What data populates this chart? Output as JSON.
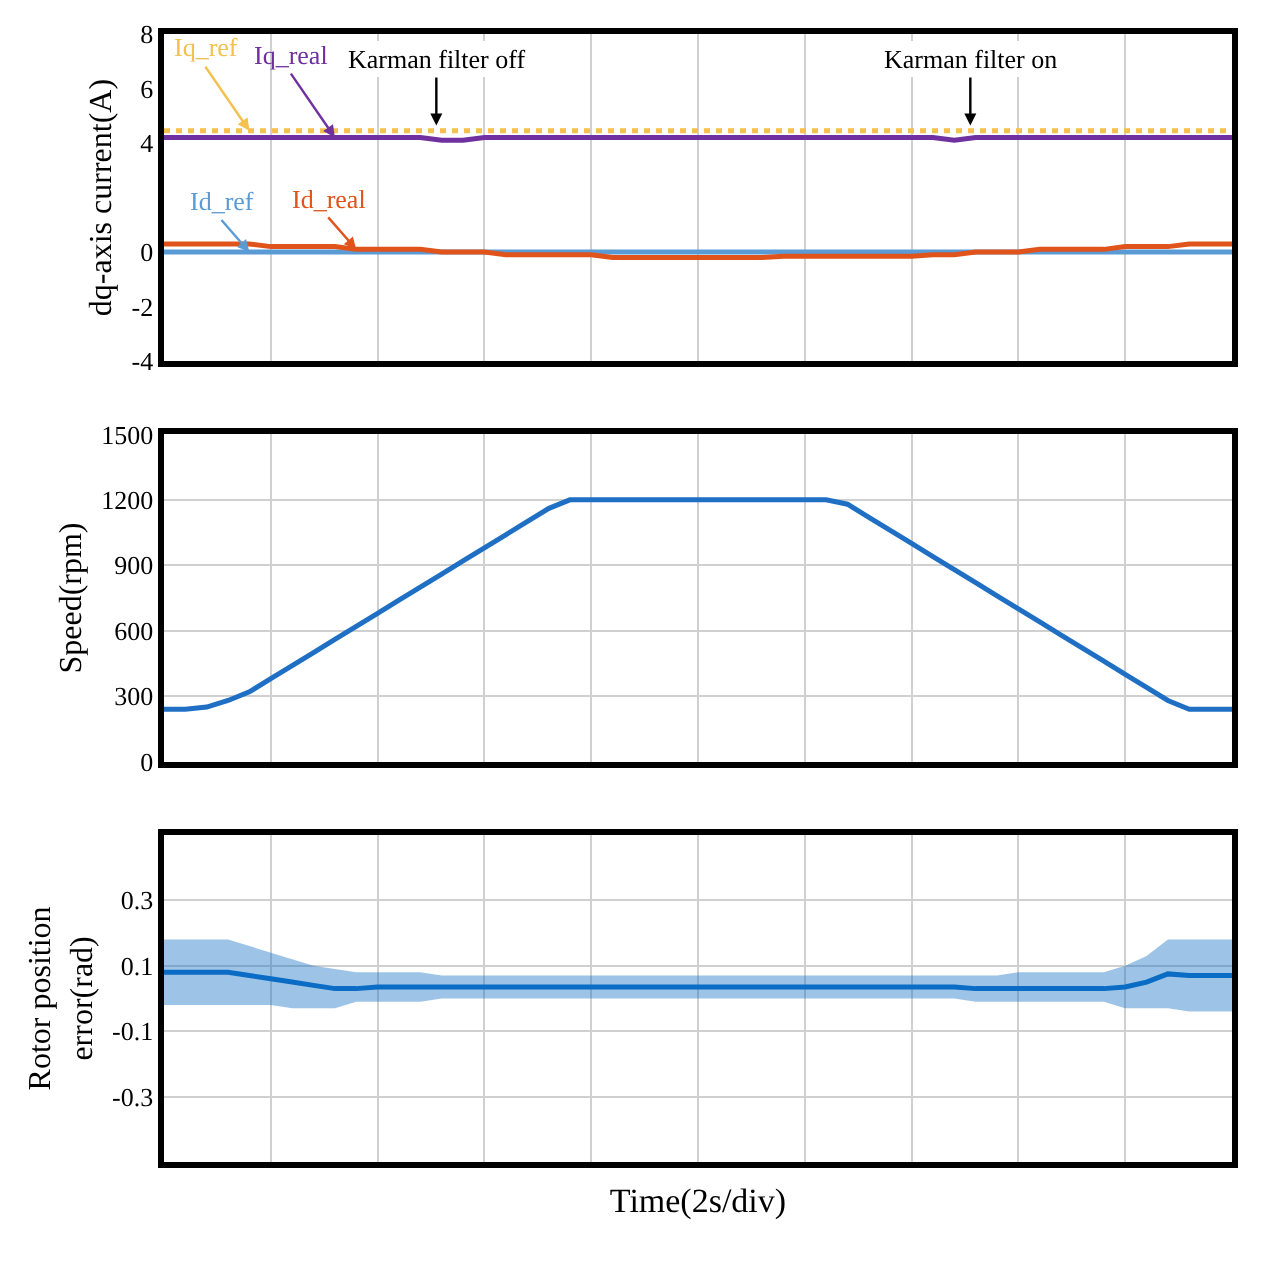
{
  "chart_data": [
    {
      "type": "line",
      "ylabel": "dq-axis current(A)",
      "categories": [
        null,
        null,
        null,
        null,
        null,
        null,
        null,
        null,
        null,
        null,
        null,
        null,
        null,
        null,
        null,
        null,
        null,
        null,
        null,
        null,
        null,
        null,
        null,
        null,
        null,
        null,
        null,
        null,
        null,
        null,
        null,
        null,
        null,
        null,
        null,
        null,
        null,
        null,
        null,
        null,
        null,
        null,
        null,
        null,
        null,
        null,
        null,
        null,
        null,
        null,
        null
      ],
      "ylim": [
        -4,
        8
      ],
      "yticks": [
        8,
        6,
        4,
        0,
        -2,
        -4
      ],
      "tick_labels": "y",
      "grid": "x",
      "legend": "top left",
      "series": [
        {
          "name": "Iq_ref",
          "color": "#f2c14e",
          "line_style": "dotted",
          "values": [
            4.45,
            4.45,
            4.45,
            4.45,
            4.45,
            4.45,
            4.45,
            4.45,
            4.45,
            4.45,
            4.45,
            4.45,
            4.45,
            4.45,
            4.45,
            4.45,
            4.45,
            4.45,
            4.45,
            4.45,
            4.45,
            4.45,
            4.45,
            4.45,
            4.45,
            4.45,
            4.45,
            4.45,
            4.45,
            4.45,
            4.45,
            4.45,
            4.45,
            4.45,
            4.45,
            4.45,
            4.45,
            4.45,
            4.45,
            4.45,
            4.45,
            4.45,
            4.45,
            4.45,
            4.45,
            4.45,
            4.45,
            4.45,
            4.45,
            4.45,
            4.45
          ]
        },
        {
          "name": "Iq_real",
          "color": "#7030a0",
          "values": [
            4.2,
            4.2,
            4.2,
            4.2,
            4.2,
            4.2,
            4.2,
            4.2,
            4.2,
            4.2,
            4.2,
            4.2,
            4.2,
            4.1,
            4.1,
            4.2,
            4.2,
            4.2,
            4.2,
            4.2,
            4.2,
            4.2,
            4.2,
            4.2,
            4.2,
            4.2,
            4.2,
            4.2,
            4.2,
            4.2,
            4.2,
            4.2,
            4.2,
            4.2,
            4.2,
            4.2,
            4.2,
            4.1,
            4.2,
            4.2,
            4.2,
            4.2,
            4.2,
            4.2,
            4.2,
            4.2,
            4.2,
            4.2,
            4.2,
            4.2,
            4.2
          ]
        },
        {
          "name": "Id_ref",
          "color": "#5b9bd5",
          "values": [
            0,
            0,
            0,
            0,
            0,
            0,
            0,
            0,
            0,
            0,
            0,
            0,
            0,
            0,
            0,
            0,
            0,
            0,
            0,
            0,
            0,
            0,
            0,
            0,
            0,
            0,
            0,
            0,
            0,
            0,
            0,
            0,
            0,
            0,
            0,
            0,
            0,
            0,
            0,
            0,
            0,
            0,
            0,
            0,
            0,
            0,
            0,
            0,
            0,
            0,
            0
          ]
        },
        {
          "name": "Id_real",
          "color": "#e0541b",
          "values": [
            0.3,
            0.3,
            0.3,
            0.3,
            0.3,
            0.2,
            0.2,
            0.2,
            0.2,
            0.1,
            0.1,
            0.1,
            0.1,
            0,
            0,
            0,
            -0.1,
            -0.1,
            -0.1,
            -0.1,
            -0.1,
            -0.2,
            -0.2,
            -0.2,
            -0.2,
            -0.2,
            -0.2,
            -0.2,
            -0.2,
            -0.15,
            -0.15,
            -0.15,
            -0.15,
            -0.15,
            -0.15,
            -0.15,
            -0.1,
            -0.1,
            0,
            0,
            0,
            0.1,
            0.1,
            0.1,
            0.1,
            0.2,
            0.2,
            0.2,
            0.3,
            0.3,
            0.3
          ]
        }
      ],
      "annotations": [
        "Karman filter off",
        "Karman filter on"
      ]
    },
    {
      "type": "line",
      "ylabel": "Speed(rpm)",
      "categories": [
        null,
        null,
        null,
        null,
        null,
        null,
        null,
        null,
        null,
        null,
        null,
        null,
        null,
        null,
        null,
        null,
        null,
        null,
        null,
        null,
        null,
        null,
        null,
        null,
        null,
        null,
        null,
        null,
        null,
        null,
        null,
        null,
        null,
        null,
        null,
        null,
        null,
        null,
        null,
        null,
        null,
        null,
        null,
        null,
        null,
        null,
        null,
        null,
        null,
        null,
        null
      ],
      "ylim": [
        0,
        1500
      ],
      "yticks": [
        0,
        300,
        600,
        900,
        1200,
        1500
      ],
      "tick_labels": "y",
      "grid": true,
      "series": [
        {
          "color": "#1f6fc4",
          "values": [
            240,
            240,
            250,
            280,
            320,
            380,
            440,
            500,
            560,
            620,
            680,
            740,
            800,
            860,
            920,
            980,
            1040,
            1100,
            1160,
            1200,
            1200,
            1200,
            1200,
            1200,
            1200,
            1200,
            1200,
            1200,
            1200,
            1200,
            1200,
            1200,
            1180,
            1120,
            1060,
            1000,
            940,
            880,
            820,
            760,
            700,
            640,
            580,
            520,
            460,
            400,
            340,
            280,
            240,
            240,
            240
          ]
        }
      ]
    },
    {
      "type": "line",
      "ylabel": "Rotor position error(rad)",
      "xlabel": "Time(2s/div)",
      "categories": [
        null,
        null,
        null,
        null,
        null,
        null,
        null,
        null,
        null,
        null,
        null,
        null,
        null,
        null,
        null,
        null,
        null,
        null,
        null,
        null,
        null,
        null,
        null,
        null,
        null,
        null,
        null,
        null,
        null,
        null,
        null,
        null,
        null,
        null,
        null,
        null,
        null,
        null,
        null,
        null,
        null,
        null,
        null,
        null,
        null,
        null,
        null,
        null,
        null,
        null,
        null
      ],
      "ylim": [
        -0.5,
        0.5
      ],
      "yticks": [
        0.3,
        0.1,
        -0.1,
        -0.3
      ],
      "tick_labels": "y",
      "grid": true,
      "series": [
        {
          "color": "#0a6cc4",
          "values": [
            0.08,
            0.08,
            0.08,
            0.08,
            0.07,
            0.06,
            0.05,
            0.04,
            0.03,
            0.03,
            0.035,
            0.035,
            0.035,
            0.035,
            0.035,
            0.035,
            0.035,
            0.035,
            0.035,
            0.035,
            0.035,
            0.035,
            0.035,
            0.035,
            0.035,
            0.035,
            0.035,
            0.035,
            0.035,
            0.035,
            0.035,
            0.035,
            0.035,
            0.035,
            0.035,
            0.035,
            0.035,
            0.035,
            0.03,
            0.03,
            0.03,
            0.03,
            0.03,
            0.03,
            0.03,
            0.035,
            0.05,
            0.075,
            0.07,
            0.07,
            0.07
          ],
          "upper": [
            0.18,
            0.18,
            0.18,
            0.18,
            0.16,
            0.14,
            0.12,
            0.1,
            0.09,
            0.08,
            0.08,
            0.08,
            0.08,
            0.07,
            0.07,
            0.07,
            0.07,
            0.07,
            0.07,
            0.07,
            0.07,
            0.07,
            0.07,
            0.07,
            0.07,
            0.07,
            0.07,
            0.07,
            0.07,
            0.07,
            0.07,
            0.07,
            0.07,
            0.07,
            0.07,
            0.07,
            0.07,
            0.07,
            0.07,
            0.07,
            0.08,
            0.08,
            0.08,
            0.08,
            0.08,
            0.1,
            0.13,
            0.18,
            0.18,
            0.18,
            0.18
          ],
          "lower": [
            -0.02,
            -0.02,
            -0.02,
            -0.02,
            -0.02,
            -0.02,
            -0.03,
            -0.03,
            -0.03,
            -0.01,
            -0.01,
            -0.01,
            -0.01,
            0,
            0,
            0,
            0,
            0,
            0,
            0,
            0,
            0,
            0,
            0,
            0,
            0,
            0,
            0,
            0,
            0,
            0,
            0,
            0,
            0,
            0,
            0,
            0,
            0,
            -0.01,
            -0.01,
            -0.01,
            -0.01,
            -0.01,
            -0.01,
            -0.01,
            -0.03,
            -0.03,
            -0.03,
            -0.04,
            -0.04,
            -0.04
          ]
        }
      ]
    }
  ]
}
